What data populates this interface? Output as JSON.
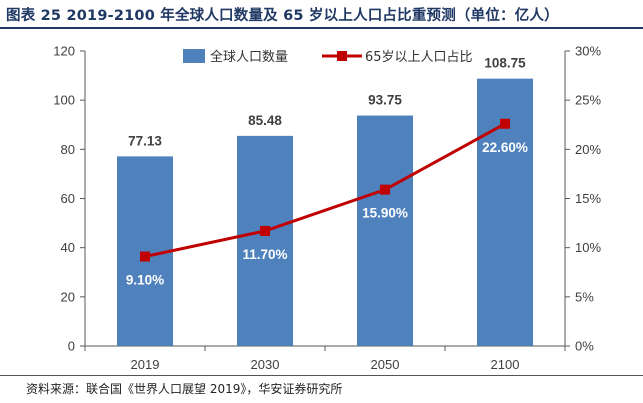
{
  "header": {
    "title": "图表 25 2019-2100 年全球人口数量及 65 岁以上人口占比重预测（单位：亿人）"
  },
  "footer": {
    "source": "资料来源：联合国《世界人口展望 2019》，华安证券研究所"
  },
  "chart_data": {
    "type": "bar",
    "title": "",
    "xlabel": "",
    "ylabel": "",
    "categories": [
      "2019",
      "2030",
      "2050",
      "2100"
    ],
    "series": [
      {
        "name": "全球人口数量",
        "type": "bar",
        "axis": "left",
        "values": [
          77.13,
          85.48,
          93.75,
          108.75
        ],
        "labels": [
          "77.13",
          "85.48",
          "93.75",
          "108.75"
        ],
        "color": "#4f81bd"
      },
      {
        "name": "65岁以上人口占比",
        "type": "line",
        "axis": "right",
        "values": [
          9.1,
          11.7,
          15.9,
          22.6
        ],
        "labels": [
          "9.10%",
          "11.70%",
          "15.90%",
          "22.60%"
        ],
        "color": "#c00000"
      }
    ],
    "ylim": [
      0,
      120
    ],
    "y_ticks": [
      "0",
      "20",
      "40",
      "60",
      "80",
      "100",
      "120"
    ],
    "y2lim": [
      0,
      30
    ],
    "y2_ticks": [
      "0%",
      "5%",
      "10%",
      "15%",
      "20%",
      "25%",
      "30%"
    ],
    "legend": "top",
    "grid": false
  }
}
